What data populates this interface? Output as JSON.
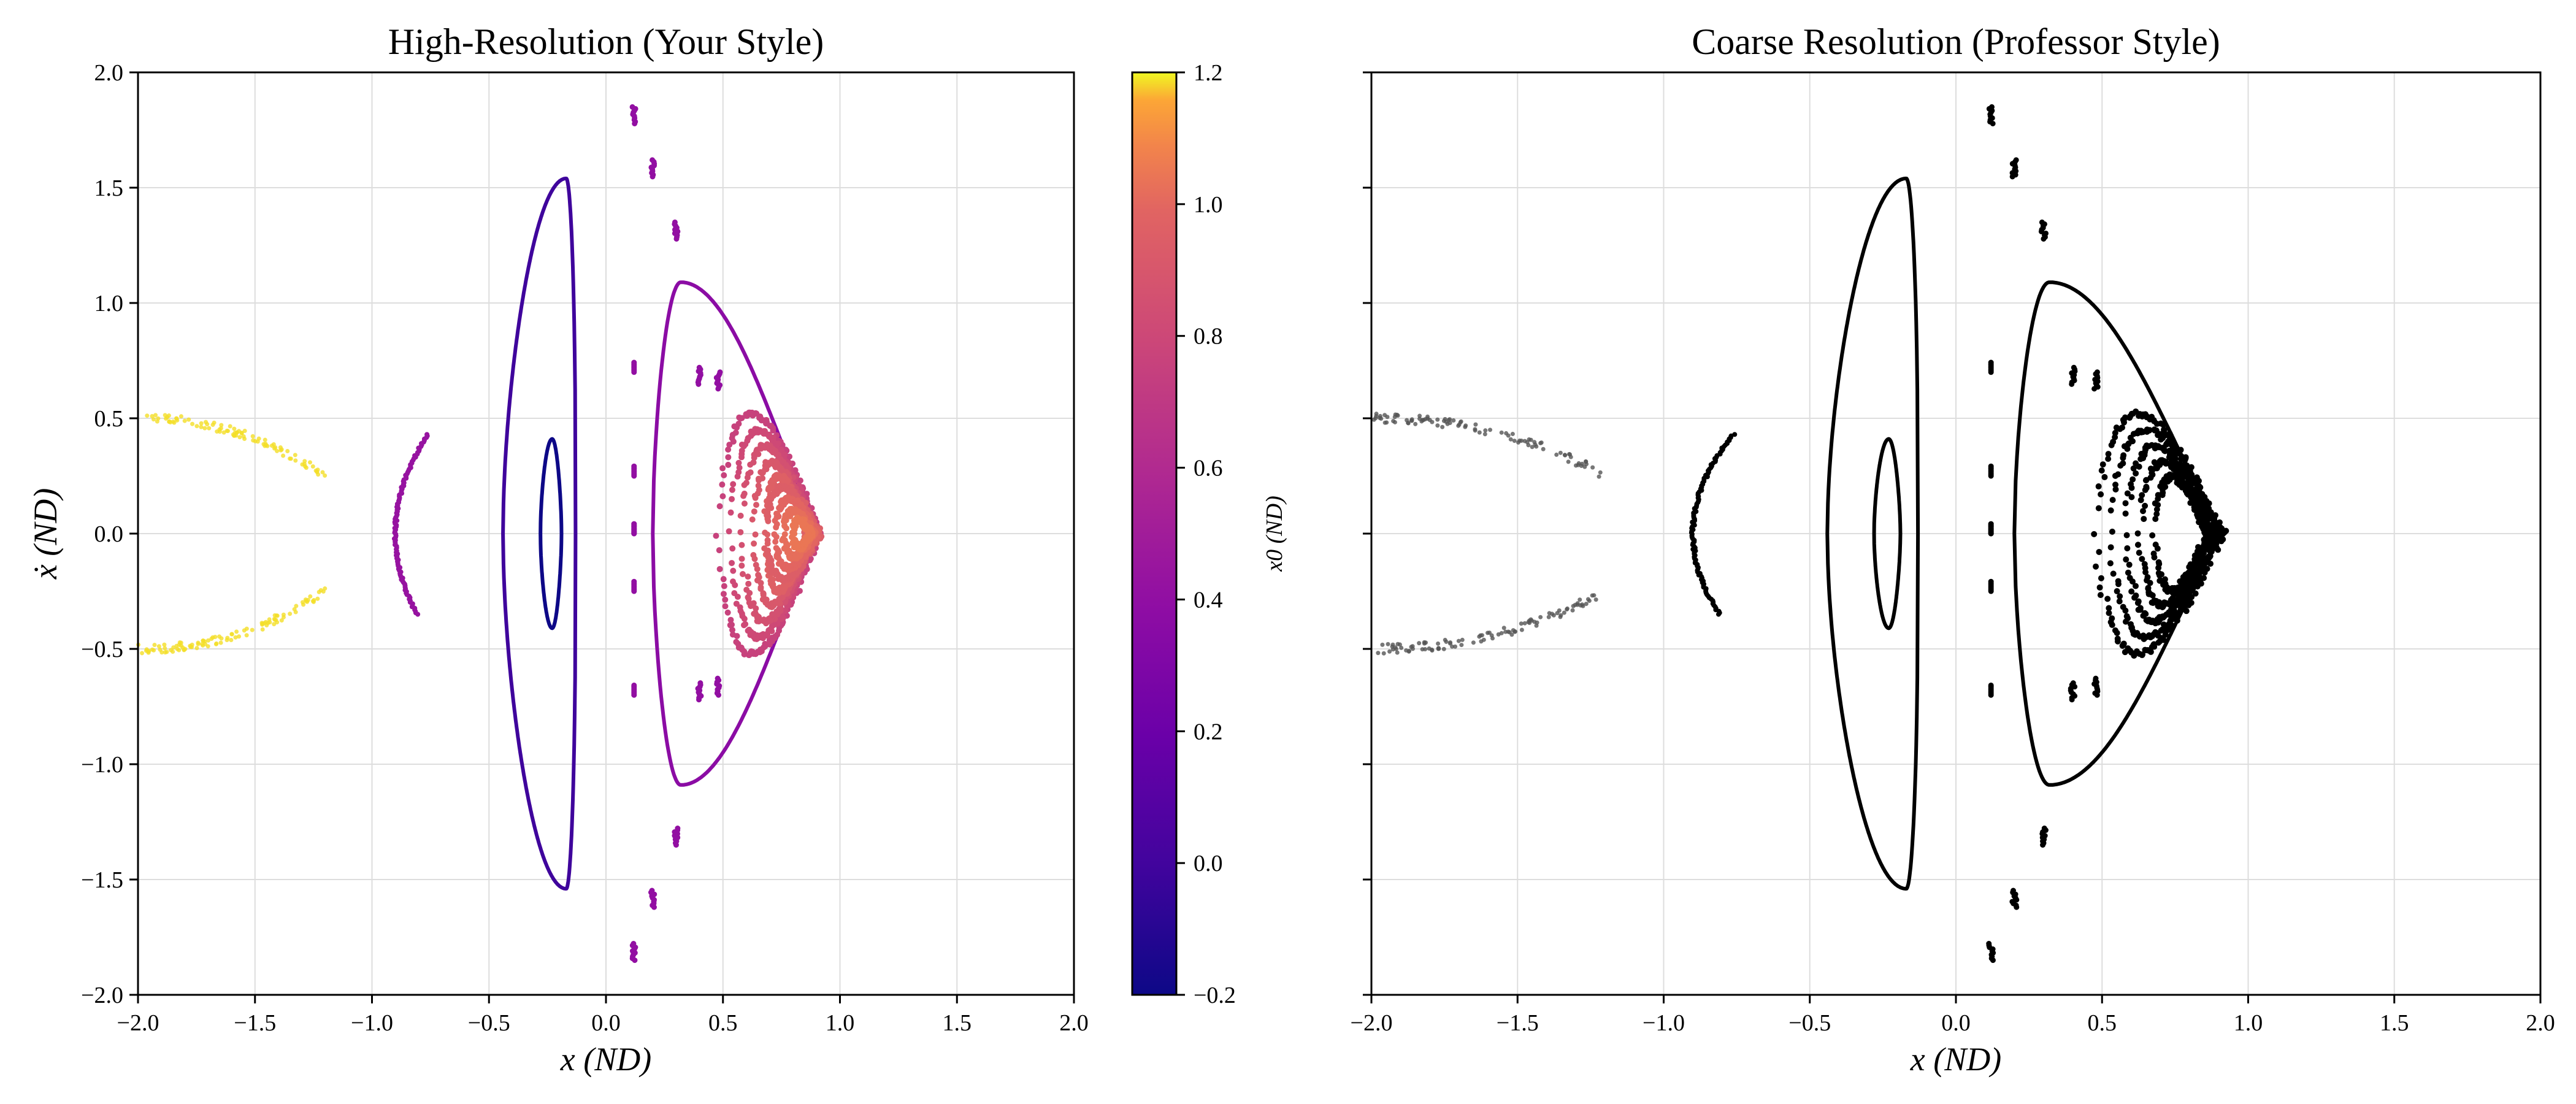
{
  "chart_data": [
    {
      "type": "scatter",
      "title": "High-Resolution (Your Style)",
      "xlabel": "x (ND)",
      "ylabel": "ẋ (ND)",
      "xlim": [
        -2.0,
        2.0
      ],
      "ylim": [
        -2.0,
        2.0
      ],
      "xticks": [
        "−2.0",
        "−1.5",
        "−1.0",
        "−0.5",
        "0.0",
        "0.5",
        "1.0",
        "1.5",
        "2.0"
      ],
      "yticks": [
        "−2.0",
        "−1.5",
        "−1.0",
        "−0.5",
        "0.0",
        "0.5",
        "1.0",
        "1.5",
        "2.0"
      ],
      "grid": true,
      "color_by": "x0",
      "colormap": "plasma",
      "colorbar": {
        "label": "x0 (ND)",
        "range": [
          -0.2,
          1.2
        ],
        "ticks": [
          "−0.2",
          "0.0",
          "0.2",
          "0.4",
          "0.6",
          "0.8",
          "1.0",
          "1.2"
        ]
      },
      "series": [
        {
          "x0": -0.25,
          "kind": "closed_curve",
          "x_range": [
            -0.28,
            -0.2
          ],
          "xdot_max": 0.41
        },
        {
          "x0": -0.05,
          "kind": "closed_curve",
          "x_range": [
            -0.44,
            -0.15
          ],
          "xdot_max": 1.54
        },
        {
          "x0": 0.25,
          "kind": "closed_curve",
          "x_range": [
            0.2,
            0.92
          ],
          "xdot_max": 1.09
        },
        {
          "x0": 0.55,
          "kind": "nested_islands",
          "x_range": [
            0.48,
            0.92
          ],
          "xdot_max": 0.52
        },
        {
          "x0": 0.7,
          "kind": "nested_islands",
          "x_range": [
            0.6,
            0.92
          ],
          "xdot_max": 0.25
        },
        {
          "x0": 0.28,
          "kind": "island_chain",
          "x_approx": [
            0.12,
            0.2,
            0.3,
            0.4,
            0.48
          ],
          "xdot_approx": [
            1.85,
            1.62,
            1.35,
            0.72,
            0.7
          ]
        },
        {
          "x0": 0.3,
          "kind": "arc",
          "x_range": [
            -0.9,
            -0.78
          ],
          "xdot_max": 0.43
        },
        {
          "x0": 1.15,
          "kind": "chaotic_arc",
          "x_range": [
            -2.0,
            -1.2
          ],
          "xdot_max": 0.5
        }
      ]
    },
    {
      "type": "scatter",
      "title": "Coarse Resolution (Professor Style)",
      "xlabel": "x (ND)",
      "ylabel": "",
      "xlim": [
        -2.0,
        2.0
      ],
      "ylim": [
        -2.0,
        2.0
      ],
      "xticks": [
        "−2.0",
        "−1.5",
        "−1.0",
        "−0.5",
        "0.0",
        "0.5",
        "1.0",
        "1.5",
        "2.0"
      ],
      "yticks": [],
      "grid": true,
      "marker_color": "#000000",
      "series": [
        {
          "kind": "closed_curve",
          "x_range": [
            -0.28,
            -0.2
          ],
          "xdot_max": 0.41
        },
        {
          "kind": "closed_curve",
          "x_range": [
            -0.44,
            -0.15
          ],
          "xdot_max": 1.54
        },
        {
          "kind": "closed_curve",
          "x_range": [
            0.2,
            0.92
          ],
          "xdot_max": 1.09
        },
        {
          "kind": "nested_islands",
          "x_range": [
            0.48,
            0.92
          ],
          "xdot_max": 0.52
        },
        {
          "kind": "island_chain",
          "x_approx": [
            0.12,
            0.2,
            0.3,
            0.4,
            0.48
          ],
          "xdot_approx": [
            1.85,
            1.62,
            1.35,
            0.72,
            0.7
          ]
        },
        {
          "kind": "arc",
          "x_range": [
            -0.9,
            -0.78
          ],
          "xdot_max": 0.43
        },
        {
          "kind": "chaotic_arc",
          "x_range": [
            -2.0,
            -1.2
          ],
          "xdot_max": 0.5
        }
      ]
    }
  ]
}
